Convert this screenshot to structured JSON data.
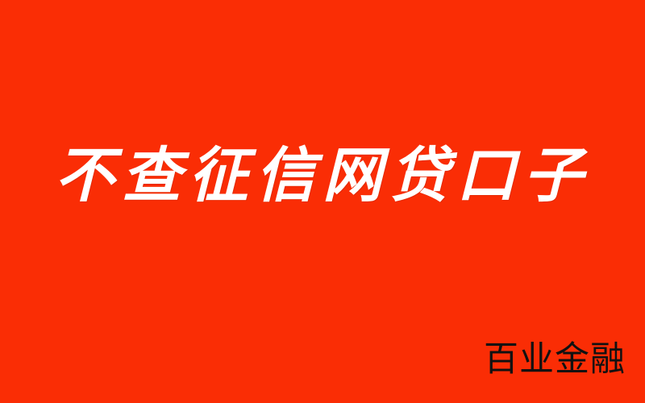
{
  "colors": {
    "background": "#fa2d05",
    "headline": "#ffffff",
    "brand": "#111111"
  },
  "headline": "不查征信网贷口子",
  "brand": "百业金融"
}
